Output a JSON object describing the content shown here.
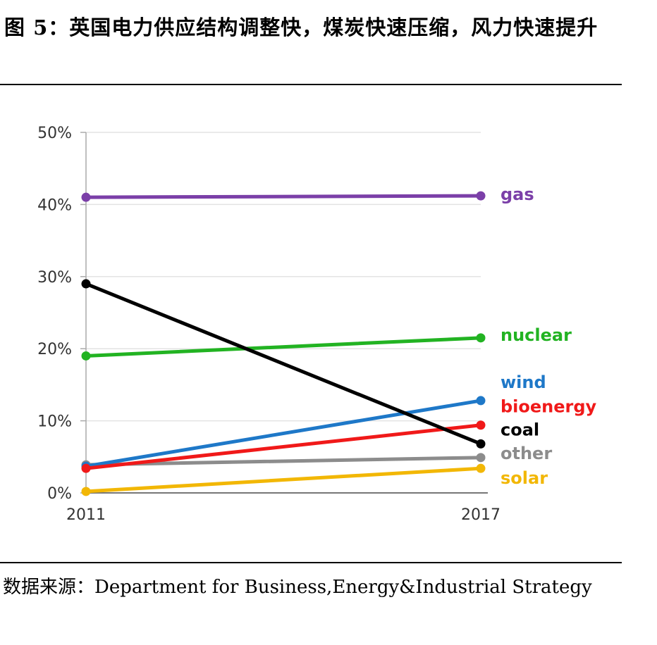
{
  "figure": {
    "title": "图 5：英国电力供应结构调整快，煤炭快速压缩，风力快速提升",
    "source": "数据来源：Department for Business,Energy&Industrial Strategy"
  },
  "chart_data": {
    "type": "line",
    "x": [
      "2011",
      "2017"
    ],
    "ylim": [
      0,
      50
    ],
    "yticks": [
      "0%",
      "10%",
      "20%",
      "30%",
      "40%",
      "50%"
    ],
    "grid": true,
    "series": [
      {
        "name": "gas",
        "color": "#7b3fa8",
        "values": [
          41,
          41.2
        ]
      },
      {
        "name": "nuclear",
        "color": "#22b322",
        "values": [
          19,
          21.5
        ]
      },
      {
        "name": "wind",
        "color": "#1e78c8",
        "values": [
          3.7,
          12.8
        ]
      },
      {
        "name": "bioenergy",
        "color": "#f01919",
        "values": [
          3.4,
          9.4
        ]
      },
      {
        "name": "coal",
        "color": "#000000",
        "values": [
          29,
          6.8
        ]
      },
      {
        "name": "other",
        "color": "#8c8c8c",
        "values": [
          3.9,
          4.9
        ]
      },
      {
        "name": "solar",
        "color": "#f2b705",
        "values": [
          0.2,
          3.4
        ]
      }
    ]
  }
}
